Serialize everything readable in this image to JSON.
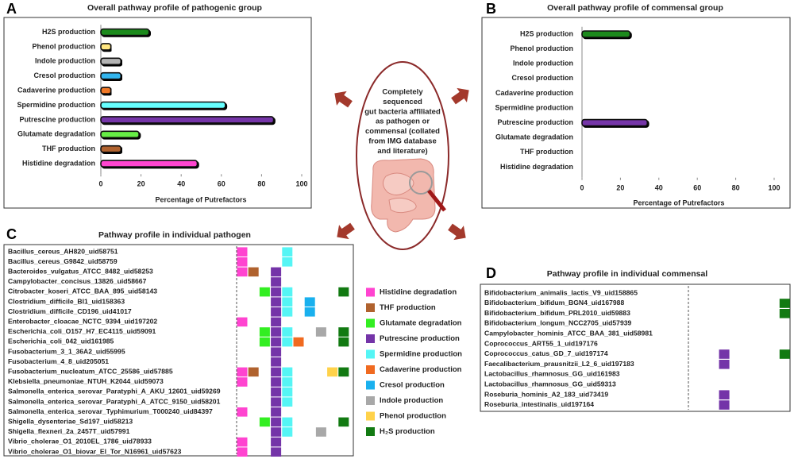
{
  "center_text": [
    "Completely",
    "sequenced",
    "gut bacteria affiliated",
    "as pathogen or",
    "commensal (collated",
    "from IMG database",
    "and literature)"
  ],
  "chart_data": [
    {
      "type": "bar",
      "panel_label": "A",
      "title": "Overall pathway profile of pathogenic group",
      "categories": [
        "H2S production",
        "Phenol production",
        "Indole production",
        "Cresol production",
        "Cadaverine production",
        "Spermidine production",
        "Putrescine production",
        "Glutamate degradation",
        "THF production",
        "Histidine degradation"
      ],
      "values": [
        24,
        5,
        10,
        10,
        5,
        62,
        86,
        19,
        10,
        48
      ],
      "colors": [
        "#1c8a1c",
        "#ffe680",
        "#b4b4b4",
        "#33b5ee",
        "#f07828",
        "#66ffff",
        "#7434a8",
        "#66ee44",
        "#b0622e",
        "#ff44d0"
      ],
      "xlim": [
        0,
        100
      ],
      "xticks": [
        0,
        20,
        40,
        60,
        80,
        100
      ],
      "xlabel": "Percentage of Putrefactors"
    },
    {
      "type": "bar",
      "panel_label": "B",
      "title": "Overall pathway profile of commensal group",
      "categories": [
        "H2S production",
        "Phenol production",
        "Indole production",
        "Cresol production",
        "Cadaverine production",
        "Spermidine production",
        "Putrescine production",
        "Glutamate degradation",
        "THF production",
        "Histidine  degradation"
      ],
      "values": [
        25,
        0,
        0,
        0,
        0,
        0,
        34,
        0,
        0,
        0
      ],
      "colors": [
        "#1c8a1c",
        "#ffe680",
        "#b4b4b4",
        "#33b5ee",
        "#f07828",
        "#66ffff",
        "#7434a8",
        "#66ee44",
        "#b0622e",
        "#ff44d0"
      ],
      "xlim": [
        0,
        100
      ],
      "xticks": [
        0,
        20,
        40,
        60,
        80,
        100
      ],
      "xlabel": "Percentage of Putrefactors"
    },
    {
      "type": "heatmap",
      "panel_label": "C",
      "title": "Pathway profile in individual pathogen",
      "columns": [
        "Histidine degradation",
        "THF production",
        "Glutamate degradation",
        "Putrescine production",
        "Spermidine  production",
        "Cadaverine production",
        "Cresol production",
        "Indole production",
        "Phenol production",
        "H₂S production"
      ],
      "colors": [
        "#ff44d0",
        "#b0622e",
        "#33ee22",
        "#7434a8",
        "#55f5f5",
        "#f06a20",
        "#19b0ee",
        "#a8a8a8",
        "#ffd24a",
        "#127a12"
      ],
      "rows": [
        "Bacillus_cereus_AH820_uid58751",
        "Bacillus_cereus_G9842_uid58759",
        "Bacteroides_vulgatus_ATCC_8482_uid58253",
        "Campylobacter_concisus_13826_uid58667",
        "Citrobacter_koseri_ATCC_BAA_895_uid58143",
        "Clostridium_difficile_BI1_uid158363",
        "Clostridium_difficile_CD196_uid41017",
        "Enterobacter_cloacae_NCTC_9394_uid197202",
        "Escherichia_coli_O157_H7_EC4115_uid59091",
        "Escherichia_coli_042_uid161985",
        "Fusobacterium_3_1_36A2_uid55995",
        "Fusobacterium_4_8_uid205051",
        "Fusobacterium_nucleatum_ATCC_25586_uid57885",
        "Klebsiella_pneumoniae_NTUH_K2044_uid59073",
        "Salmonella_enterica_serovar_Paratyphi_A_AKU_12601_uid59269",
        "Salmonella_enterica_serovar_Paratyphi_A_ATCC_9150_uid58201",
        "Salmonella_enterica_serovar_Typhimurium_T000240_uid84397",
        "Shigella_dysenteriae_Sd197_uid58213",
        "Shigella_flexneri_2a_2457T_uid57991",
        "Vibrio_cholerae_O1_2010EL_1786_uid78933",
        "Vibrio_cholerae_O1_biovar_El_Tor_N16961_uid57623"
      ],
      "values": [
        [
          1,
          0,
          0,
          0,
          1,
          0,
          0,
          0,
          0,
          0
        ],
        [
          1,
          0,
          0,
          0,
          1,
          0,
          0,
          0,
          0,
          0
        ],
        [
          1,
          1,
          0,
          1,
          0,
          0,
          0,
          0,
          0,
          0
        ],
        [
          0,
          0,
          0,
          1,
          0,
          0,
          0,
          0,
          0,
          0
        ],
        [
          0,
          0,
          1,
          1,
          1,
          0,
          0,
          0,
          0,
          1
        ],
        [
          0,
          0,
          0,
          1,
          1,
          0,
          1,
          0,
          0,
          0
        ],
        [
          0,
          0,
          0,
          1,
          1,
          0,
          1,
          0,
          0,
          0
        ],
        [
          1,
          0,
          0,
          1,
          0,
          0,
          0,
          0,
          0,
          0
        ],
        [
          0,
          0,
          1,
          1,
          1,
          0,
          0,
          1,
          0,
          1
        ],
        [
          0,
          0,
          1,
          1,
          1,
          1,
          0,
          0,
          0,
          1
        ],
        [
          0,
          0,
          0,
          1,
          0,
          0,
          0,
          0,
          0,
          0
        ],
        [
          0,
          0,
          0,
          1,
          0,
          0,
          0,
          0,
          0,
          0
        ],
        [
          1,
          1,
          0,
          1,
          1,
          0,
          0,
          0,
          1,
          1
        ],
        [
          1,
          0,
          0,
          1,
          1,
          0,
          0,
          0,
          0,
          0
        ],
        [
          0,
          0,
          0,
          1,
          1,
          0,
          0,
          0,
          0,
          0
        ],
        [
          0,
          0,
          0,
          1,
          1,
          0,
          0,
          0,
          0,
          0
        ],
        [
          1,
          0,
          0,
          1,
          0,
          0,
          0,
          0,
          0,
          0
        ],
        [
          0,
          0,
          1,
          1,
          1,
          0,
          0,
          0,
          0,
          1
        ],
        [
          0,
          0,
          0,
          1,
          1,
          0,
          0,
          1,
          0,
          0
        ],
        [
          1,
          0,
          0,
          1,
          0,
          0,
          0,
          0,
          0,
          0
        ],
        [
          1,
          0,
          0,
          1,
          0,
          0,
          0,
          0,
          0,
          0
        ]
      ]
    },
    {
      "type": "heatmap",
      "panel_label": "D",
      "title": "Pathway profile in individual commensal",
      "colors": [
        "#ff44d0",
        "#b0622e",
        "#33ee22",
        "#7434a8",
        "#55f5f5",
        "#f06a20",
        "#19b0ee",
        "#a8a8a8",
        "#ffd24a",
        "#127a12"
      ],
      "rows": [
        "Bifidobacterium_animalis_lactis_V9_uid158865",
        "Bifidobacterium_bifidum_BGN4_uid167988",
        "Bifidobacterium_bifidum_PRL2010_uid59883",
        "Bifidobacterium_longum_NCC2705_uid57939",
        "Campylobacter_hominis_ATCC_BAA_381_uid58981",
        "Coprococcus_ART55_1_uid197176",
        "Coprococcus_catus_GD_7_uid197174",
        "Faecalibacterium_prausnitzii_L2_6_uid197183",
        "Lactobacillus_rhamnosus_GG_uid161983",
        "Lactobacillus_rhamnosus_GG_uid59313",
        "Roseburia_hominis_A2_183_uid73419",
        "Roseburia_intestinalis_uid197164"
      ],
      "values": [
        [
          0,
          0,
          0,
          0,
          0,
          0,
          0,
          0,
          0,
          0
        ],
        [
          0,
          0,
          0,
          0,
          0,
          0,
          0,
          0,
          0,
          1
        ],
        [
          0,
          0,
          0,
          0,
          0,
          0,
          0,
          0,
          0,
          1
        ],
        [
          0,
          0,
          0,
          0,
          0,
          0,
          0,
          0,
          0,
          0
        ],
        [
          0,
          0,
          0,
          0,
          0,
          0,
          0,
          0,
          0,
          0
        ],
        [
          0,
          0,
          0,
          0,
          0,
          0,
          0,
          0,
          0,
          0
        ],
        [
          0,
          0,
          0,
          1,
          0,
          0,
          0,
          0,
          0,
          1
        ],
        [
          0,
          0,
          0,
          1,
          0,
          0,
          0,
          0,
          0,
          0
        ],
        [
          0,
          0,
          0,
          0,
          0,
          0,
          0,
          0,
          0,
          0
        ],
        [
          0,
          0,
          0,
          0,
          0,
          0,
          0,
          0,
          0,
          0
        ],
        [
          0,
          0,
          0,
          1,
          0,
          0,
          0,
          0,
          0,
          0
        ],
        [
          0,
          0,
          0,
          1,
          0,
          0,
          0,
          0,
          0,
          0
        ]
      ]
    }
  ]
}
